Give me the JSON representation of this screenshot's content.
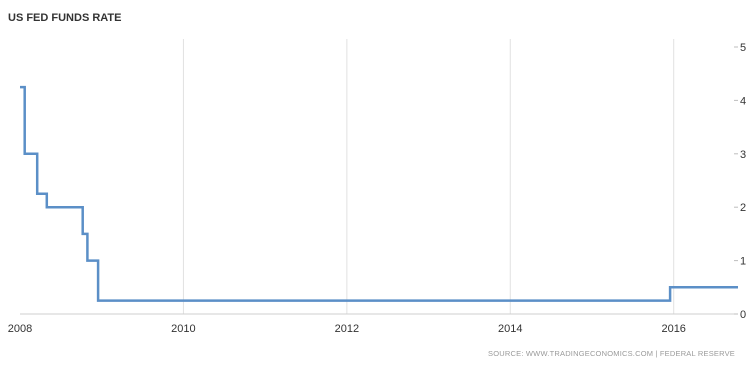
{
  "chart_data": {
    "type": "line",
    "title": "US FED FUNDS RATE",
    "source": "SOURCE: WWW.TRADINGECONOMICS.COM | FEDERAL RESERVE",
    "xlabel": "",
    "ylabel": "",
    "x_ticks": [
      "2008",
      "2010",
      "2012",
      "2014",
      "2016"
    ],
    "y_ticks": [
      "0",
      "1",
      "2",
      "3",
      "4",
      "5"
    ],
    "xlim": [
      "2008-01-01",
      "2016-10-15"
    ],
    "ylim": [
      0,
      5
    ],
    "grid": "vertical",
    "y_axis_side": "right",
    "series": [
      {
        "color": "#5b8fc7",
        "points": [
          [
            "2008-01-01",
            4.25
          ],
          [
            "2008-01-22",
            3.0
          ],
          [
            "2008-03-18",
            2.25
          ],
          [
            "2008-04-30",
            2.0
          ],
          [
            "2008-10-08",
            1.5
          ],
          [
            "2008-10-29",
            1.0
          ],
          [
            "2008-12-16",
            0.25
          ],
          [
            "2015-12-16",
            0.5
          ],
          [
            "2016-10-15",
            0.5
          ]
        ]
      }
    ]
  }
}
